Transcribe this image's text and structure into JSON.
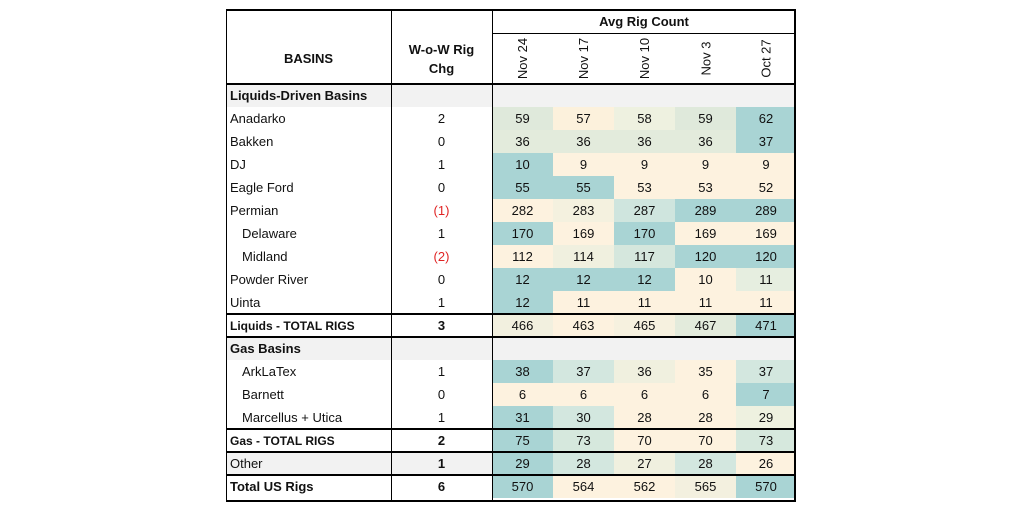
{
  "header": {
    "group_label": "Avg Rig Count",
    "basins_label": "BASINS",
    "chg_label_1": "W-o-W Rig",
    "chg_label_2": "Chg",
    "dates": [
      "Nov 24",
      "Nov 17",
      "Nov 10",
      "Nov 3",
      "Oct 27"
    ]
  },
  "rows": [
    {
      "type": "section",
      "name": "Liquids-Driven Basins"
    },
    {
      "name": "Anadarko",
      "chg": "2",
      "values": [
        "59",
        "57",
        "58",
        "59",
        "62"
      ]
    },
    {
      "name": "Bakken",
      "chg": "0",
      "values": [
        "36",
        "36",
        "36",
        "36",
        "37"
      ]
    },
    {
      "name": "DJ",
      "chg": "1",
      "values": [
        "10",
        "9",
        "9",
        "9",
        "9"
      ]
    },
    {
      "name": "Eagle Ford",
      "chg": "0",
      "values": [
        "55",
        "55",
        "53",
        "53",
        "52"
      ]
    },
    {
      "name": "Permian",
      "chg": "(1)",
      "neg": true,
      "values": [
        "282",
        "283",
        "287",
        "289",
        "289"
      ]
    },
    {
      "name": "Delaware",
      "chg": "1",
      "indent": true,
      "values": [
        "170",
        "169",
        "170",
        "169",
        "169"
      ]
    },
    {
      "name": "Midland",
      "chg": "(2)",
      "neg": true,
      "indent": true,
      "values": [
        "112",
        "114",
        "117",
        "120",
        "120"
      ]
    },
    {
      "name": "Powder River",
      "chg": "0",
      "values": [
        "12",
        "12",
        "12",
        "10",
        "11"
      ]
    },
    {
      "name": "Uinta",
      "chg": "1",
      "values": [
        "12",
        "11",
        "11",
        "11",
        "11"
      ]
    },
    {
      "type": "total",
      "name": "Liquids - TOTAL RIGS",
      "chg": "3",
      "values": [
        "466",
        "463",
        "465",
        "467",
        "471"
      ]
    },
    {
      "type": "section",
      "name": "Gas Basins"
    },
    {
      "name": "ArkLaTex",
      "chg": "1",
      "indent": true,
      "values": [
        "38",
        "37",
        "36",
        "35",
        "37"
      ]
    },
    {
      "name": "Barnett",
      "chg": "0",
      "indent": true,
      "values": [
        "6",
        "6",
        "6",
        "6",
        "7"
      ]
    },
    {
      "name": "Marcellus + Utica",
      "chg": "1",
      "indent": true,
      "values": [
        "31",
        "30",
        "28",
        "28",
        "29"
      ]
    },
    {
      "type": "total",
      "name": "Gas - TOTAL RIGS",
      "chg": "2",
      "values": [
        "75",
        "73",
        "70",
        "70",
        "73"
      ]
    },
    {
      "type": "other",
      "name": "Other",
      "chg": "1",
      "values": [
        "29",
        "28",
        "27",
        "28",
        "26"
      ]
    },
    {
      "type": "grand",
      "name": "Total US Rigs",
      "chg": "6",
      "values": [
        "570",
        "564",
        "562",
        "565",
        "570"
      ]
    }
  ],
  "colors": {
    "teal": "#a9d4d4",
    "light_teal": "#d3e7df",
    "pale": "#e6eee0",
    "cream": "#fdf2df",
    "section_bg": "#f2f2f2",
    "negative": "#e02424"
  },
  "cell_colors": [
    null,
    [
      "#dfe9db",
      "#fcf1dc",
      "#eef1e0",
      "#dfe9db",
      "#a9d4d4"
    ],
    [
      "#e3ebdc",
      "#e3ebdc",
      "#e3ebdc",
      "#e3ebdc",
      "#a9d4d4"
    ],
    [
      "#a9d4d4",
      "#fdf2df",
      "#fdf2df",
      "#fdf2df",
      "#fdf2df"
    ],
    [
      "#a9d4d4",
      "#a9d4d4",
      "#fdf2df",
      "#fdf2df",
      "#fdf2df"
    ],
    [
      "#fdf2df",
      "#f4f1df",
      "#cfe5de",
      "#a9d4d4",
      "#a9d4d4"
    ],
    [
      "#a9d4d4",
      "#fdf2df",
      "#a9d4d4",
      "#fdf2df",
      "#fdf2df"
    ],
    [
      "#fdf2df",
      "#f0f0df",
      "#d5e7dd",
      "#a9d4d4",
      "#a9d4d4"
    ],
    [
      "#a9d4d4",
      "#a9d4d4",
      "#a9d4d4",
      "#fdf2df",
      "#e6eee0"
    ],
    [
      "#a9d4d4",
      "#fdf2df",
      "#fdf2df",
      "#fdf2df",
      "#fdf2df"
    ],
    [
      "#f2f0df",
      "#fdf2df",
      "#f6f1df",
      "#e3ebdc",
      "#a9d4d4"
    ],
    null,
    [
      "#a9d4d4",
      "#d3e7df",
      "#f0f0df",
      "#fdf2df",
      "#d3e7df"
    ],
    [
      "#fdf2df",
      "#fdf2df",
      "#fdf2df",
      "#fdf2df",
      "#a9d4d4"
    ],
    [
      "#a9d4d4",
      "#d3e7df",
      "#fdf2df",
      "#fdf2df",
      "#eef1e0"
    ],
    [
      "#a9d4d4",
      "#d6e8dd",
      "#fdf2df",
      "#fdf2df",
      "#d6e8dd"
    ],
    [
      "#a9d4d4",
      "#d3e7df",
      "#f0f0df",
      "#d3e7df",
      "#fdf2df"
    ],
    [
      "#a9d4d4",
      "#fdf2df",
      "#fdf2df",
      "#f3f0df",
      "#a9d4d4"
    ]
  ]
}
